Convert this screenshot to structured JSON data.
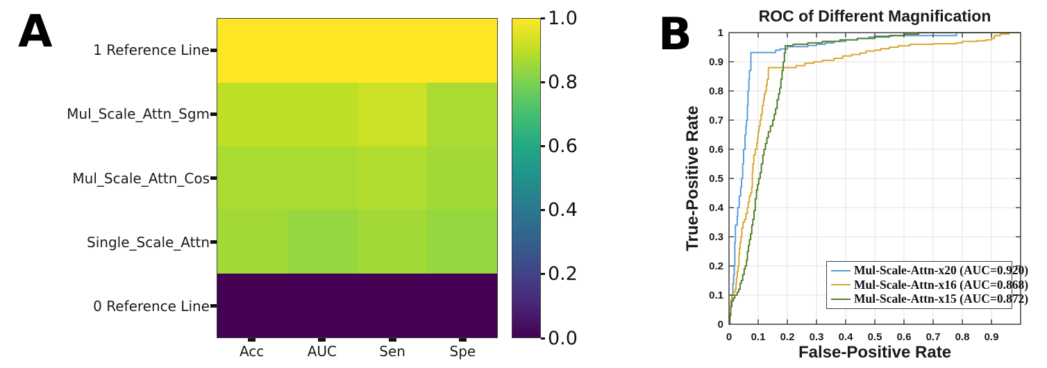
{
  "figure": {
    "panel_a_label": "A",
    "panel_b_label": "B"
  },
  "colors": {
    "curve_blue": "#5b9bd5",
    "curve_orange": "#d9a62e",
    "curve_green": "#527d28",
    "axis": "#3f3f3f",
    "grid": "#e0e0e0",
    "tick_text": "#1a1a1a"
  },
  "chart_data": [
    {
      "id": "panel_a_heatmap",
      "type": "heatmap",
      "rows": [
        "1 Reference Line",
        "Mul_Scale_Attn_Sgm",
        "Mul_Scale_Attn_Cos",
        "Single_Scale_Attn",
        "0 Reference Line"
      ],
      "columns": [
        "Acc",
        "AUC",
        "Sen",
        "Spe"
      ],
      "values": [
        [
          1.0,
          1.0,
          1.0,
          1.0
        ],
        [
          0.9,
          0.9,
          0.92,
          0.87
        ],
        [
          0.87,
          0.87,
          0.88,
          0.86
        ],
        [
          0.86,
          0.84,
          0.86,
          0.84
        ],
        [
          0.0,
          0.0,
          0.0,
          0.0
        ]
      ],
      "colorbar": {
        "min": 0.0,
        "max": 1.0,
        "tick_labels": [
          "1.0",
          "0.8",
          "0.6",
          "0.4",
          "0.2",
          "0.0"
        ],
        "colormap": "viridis",
        "stops": [
          "#440154",
          "#482475",
          "#414487",
          "#355f8d",
          "#2a788e",
          "#21918c",
          "#22a884",
          "#44bf70",
          "#7ad151",
          "#bddf26",
          "#fde725"
        ]
      }
    },
    {
      "id": "panel_b_roc",
      "type": "line",
      "title": "ROC of Different Magnification",
      "xlabel": "False-Positive Rate",
      "ylabel": "True-Positive Rate",
      "xlim": [
        0,
        1
      ],
      "ylim": [
        0,
        1
      ],
      "x_tick_labels": [
        "0",
        "0.1",
        "0.2",
        "0.3",
        "0.4",
        "0.5",
        "0.6",
        "0.7",
        "0.8",
        "0.9"
      ],
      "y_tick_labels": [
        "0",
        "0.1",
        "0.2",
        "0.3",
        "0.4",
        "0.5",
        "0.6",
        "0.7",
        "0.8",
        "0.9",
        "1"
      ],
      "grid": true,
      "legend_position": "lower right",
      "series": [
        {
          "label": "Mul-Scale-Attn-x20 (AUC=0.920)",
          "auc": 0.92,
          "color": "#5b9bd5",
          "points": [
            [
              0,
              0
            ],
            [
              0.003,
              0.03
            ],
            [
              0.006,
              0.06
            ],
            [
              0.01,
              0.1
            ],
            [
              0.013,
              0.14
            ],
            [
              0.016,
              0.17
            ],
            [
              0.018,
              0.2
            ],
            [
              0.02,
              0.28
            ],
            [
              0.022,
              0.34
            ],
            [
              0.028,
              0.37
            ],
            [
              0.03,
              0.4
            ],
            [
              0.035,
              0.44
            ],
            [
              0.04,
              0.47
            ],
            [
              0.043,
              0.5
            ],
            [
              0.047,
              0.55
            ],
            [
              0.05,
              0.6
            ],
            [
              0.055,
              0.65
            ],
            [
              0.058,
              0.68
            ],
            [
              0.06,
              0.7
            ],
            [
              0.063,
              0.75
            ],
            [
              0.065,
              0.8
            ],
            [
              0.068,
              0.84
            ],
            [
              0.07,
              0.87
            ],
            [
              0.075,
              0.932
            ],
            [
              0.155,
              0.932
            ],
            [
              0.16,
              0.94
            ],
            [
              0.175,
              0.944
            ],
            [
              0.2,
              0.952
            ],
            [
              0.27,
              0.956
            ],
            [
              0.3,
              0.96
            ],
            [
              0.33,
              0.965
            ],
            [
              0.36,
              0.97
            ],
            [
              0.4,
              0.975
            ],
            [
              0.44,
              0.98
            ],
            [
              0.48,
              0.985
            ],
            [
              0.5,
              0.988
            ],
            [
              0.56,
              0.99
            ],
            [
              0.75,
              0.99
            ],
            [
              0.78,
              1.0
            ],
            [
              1,
              1
            ]
          ]
        },
        {
          "label": "Mul-Scale-Attn-x16 (AUC=0.868)",
          "auc": 0.868,
          "color": "#d9a62e",
          "points": [
            [
              0,
              0
            ],
            [
              0.003,
              0.04
            ],
            [
              0.006,
              0.08
            ],
            [
              0.009,
              0.1
            ],
            [
              0.015,
              0.11
            ],
            [
              0.021,
              0.12
            ],
            [
              0.024,
              0.14
            ],
            [
              0.026,
              0.16
            ],
            [
              0.028,
              0.18
            ],
            [
              0.031,
              0.2
            ],
            [
              0.034,
              0.24
            ],
            [
              0.036,
              0.26
            ],
            [
              0.038,
              0.28
            ],
            [
              0.041,
              0.3
            ],
            [
              0.044,
              0.33
            ],
            [
              0.048,
              0.35
            ],
            [
              0.053,
              0.36
            ],
            [
              0.058,
              0.38
            ],
            [
              0.063,
              0.4
            ],
            [
              0.066,
              0.42
            ],
            [
              0.07,
              0.44
            ],
            [
              0.074,
              0.45
            ],
            [
              0.078,
              0.47
            ],
            [
              0.08,
              0.52
            ],
            [
              0.082,
              0.55
            ],
            [
              0.085,
              0.58
            ],
            [
              0.09,
              0.6
            ],
            [
              0.095,
              0.62
            ],
            [
              0.098,
              0.64
            ],
            [
              0.1,
              0.66
            ],
            [
              0.103,
              0.68
            ],
            [
              0.107,
              0.7
            ],
            [
              0.11,
              0.72
            ],
            [
              0.114,
              0.75
            ],
            [
              0.118,
              0.77
            ],
            [
              0.121,
              0.79
            ],
            [
              0.125,
              0.8
            ],
            [
              0.128,
              0.82
            ],
            [
              0.131,
              0.84
            ],
            [
              0.135,
              0.88
            ],
            [
              0.21,
              0.88
            ],
            [
              0.23,
              0.887
            ],
            [
              0.26,
              0.895
            ],
            [
              0.29,
              0.9
            ],
            [
              0.32,
              0.905
            ],
            [
              0.36,
              0.912
            ],
            [
              0.39,
              0.92
            ],
            [
              0.42,
              0.925
            ],
            [
              0.45,
              0.93
            ],
            [
              0.47,
              0.937
            ],
            [
              0.5,
              0.94
            ],
            [
              0.52,
              0.945
            ],
            [
              0.55,
              0.95
            ],
            [
              0.58,
              0.955
            ],
            [
              0.62,
              0.96
            ],
            [
              0.7,
              0.962
            ],
            [
              0.78,
              0.965
            ],
            [
              0.8,
              0.97
            ],
            [
              0.85,
              0.972
            ],
            [
              0.88,
              0.975
            ],
            [
              0.9,
              0.98
            ],
            [
              0.91,
              0.99
            ],
            [
              0.93,
              0.995
            ],
            [
              0.96,
              1.0
            ],
            [
              1,
              1
            ]
          ]
        },
        {
          "label": "Mul-Scale-Attn-x15 (AUC=0.872)",
          "auc": 0.872,
          "color": "#527d28",
          "points": [
            [
              0,
              0
            ],
            [
              0.003,
              0.03
            ],
            [
              0.006,
              0.06
            ],
            [
              0.009,
              0.08
            ],
            [
              0.015,
              0.09
            ],
            [
              0.02,
              0.1
            ],
            [
              0.028,
              0.11
            ],
            [
              0.033,
              0.12
            ],
            [
              0.038,
              0.14
            ],
            [
              0.042,
              0.15
            ],
            [
              0.047,
              0.17
            ],
            [
              0.052,
              0.19
            ],
            [
              0.056,
              0.2
            ],
            [
              0.06,
              0.22
            ],
            [
              0.063,
              0.25
            ],
            [
              0.067,
              0.27
            ],
            [
              0.07,
              0.29
            ],
            [
              0.074,
              0.31
            ],
            [
              0.078,
              0.34
            ],
            [
              0.082,
              0.36
            ],
            [
              0.086,
              0.39
            ],
            [
              0.09,
              0.43
            ],
            [
              0.094,
              0.46
            ],
            [
              0.098,
              0.48
            ],
            [
              0.102,
              0.5
            ],
            [
              0.107,
              0.52
            ],
            [
              0.111,
              0.55
            ],
            [
              0.116,
              0.58
            ],
            [
              0.12,
              0.6
            ],
            [
              0.125,
              0.62
            ],
            [
              0.13,
              0.64
            ],
            [
              0.135,
              0.66
            ],
            [
              0.142,
              0.68
            ],
            [
              0.15,
              0.7
            ],
            [
              0.155,
              0.72
            ],
            [
              0.16,
              0.74
            ],
            [
              0.165,
              0.77
            ],
            [
              0.17,
              0.79
            ],
            [
              0.174,
              0.81
            ],
            [
              0.178,
              0.84
            ],
            [
              0.182,
              0.87
            ],
            [
              0.186,
              0.9
            ],
            [
              0.19,
              0.93
            ],
            [
              0.193,
              0.955
            ],
            [
              0.22,
              0.96
            ],
            [
              0.27,
              0.965
            ],
            [
              0.32,
              0.97
            ],
            [
              0.38,
              0.975
            ],
            [
              0.44,
              0.98
            ],
            [
              0.5,
              0.985
            ],
            [
              0.55,
              0.99
            ],
            [
              0.6,
              0.995
            ],
            [
              0.65,
              1.0
            ],
            [
              1,
              1
            ]
          ]
        }
      ]
    }
  ]
}
